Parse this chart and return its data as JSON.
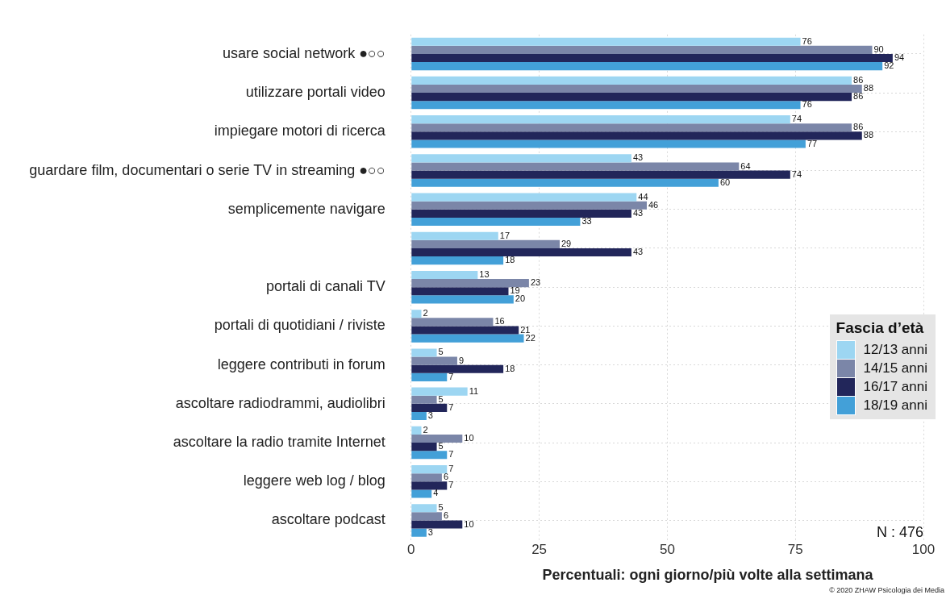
{
  "chart_data": {
    "type": "bar",
    "orientation": "horizontal",
    "xlabel": "Percentuali: ogni giorno/più volte alla settimana",
    "legend_title": "Fascia d’età",
    "categories": [
      "usare social network ●○○",
      "utilizzare portali video",
      "impiegare motori di ricerca",
      "guardare film, documentari o serie TV in streaming ●○○",
      "semplicemente navigare",
      null,
      "portali di canali TV",
      "portali di quotidiani / riviste",
      "leggere contributi in forum",
      "ascoltare radiodrammi, audiolibri",
      "ascoltare la radio tramite Internet",
      "leggere web log / blog",
      "ascoltare podcast"
    ],
    "series": [
      {
        "name": "12/13 anni",
        "color": "#9dd6f2",
        "values": [
          76,
          86,
          74,
          43,
          44,
          17,
          13,
          2,
          5,
          11,
          2,
          7,
          5
        ]
      },
      {
        "name": "14/15 anni",
        "color": "#7b86a8",
        "values": [
          90,
          88,
          86,
          64,
          46,
          29,
          23,
          16,
          9,
          5,
          10,
          6,
          6
        ]
      },
      {
        "name": "16/17 anni",
        "color": "#22265a",
        "values": [
          94,
          86,
          88,
          74,
          43,
          43,
          19,
          21,
          18,
          7,
          5,
          7,
          10
        ]
      },
      {
        "name": "18/19 anni",
        "color": "#43a0d8",
        "values": [
          92,
          76,
          77,
          60,
          33,
          18,
          20,
          22,
          7,
          3,
          7,
          4,
          3
        ]
      }
    ],
    "xlim": [
      0,
      100
    ],
    "xticks": [
      0,
      25,
      50,
      75,
      100
    ],
    "grid": true,
    "legend": "right",
    "data_labels": true,
    "annotations": [
      "N : 476",
      "© 2020 ZHAW Psicologia dei Media"
    ]
  }
}
